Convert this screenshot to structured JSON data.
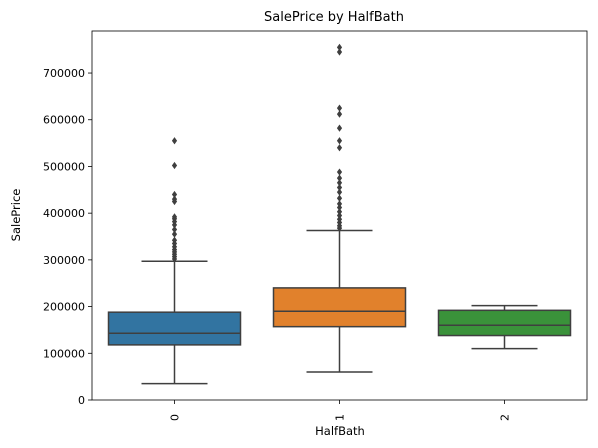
{
  "chart_data": {
    "type": "box",
    "title": "SalePrice by HalfBath",
    "xlabel": "HalfBath",
    "ylabel": "SalePrice",
    "categories": [
      "0",
      "1",
      "2"
    ],
    "ylim": [
      0,
      790000
    ],
    "yticks": [
      0,
      100000,
      200000,
      300000,
      400000,
      500000,
      600000,
      700000
    ],
    "ytick_labels": [
      "0",
      "100000",
      "200000",
      "300000",
      "400000",
      "500000",
      "600000",
      "700000"
    ],
    "grid": false,
    "boxes": [
      {
        "category": "0",
        "color": "#3274a1",
        "whisker_low": 35000,
        "q1": 118000,
        "median": 143000,
        "q3": 188000,
        "whisker_high": 297000,
        "outliers": [
          302000,
          307000,
          312000,
          317000,
          322000,
          328000,
          335000,
          342000,
          355000,
          365000,
          375000,
          382000,
          388000,
          392000,
          425000,
          430000,
          440000,
          502000,
          555000
        ]
      },
      {
        "category": "1",
        "color": "#e1812c",
        "whisker_low": 60000,
        "q1": 157000,
        "median": 190000,
        "q3": 240000,
        "whisker_high": 363000,
        "outliers": [
          368000,
          373000,
          380000,
          387000,
          395000,
          403000,
          412000,
          420000,
          432000,
          445000,
          455000,
          465000,
          475000,
          488000,
          540000,
          555000,
          582000,
          612000,
          625000,
          745000,
          755000
        ]
      },
      {
        "category": "2",
        "color": "#3a923a",
        "whisker_low": 110000,
        "q1": 138000,
        "median": 160000,
        "q3": 192000,
        "whisker_high": 202000,
        "outliers": []
      }
    ]
  }
}
